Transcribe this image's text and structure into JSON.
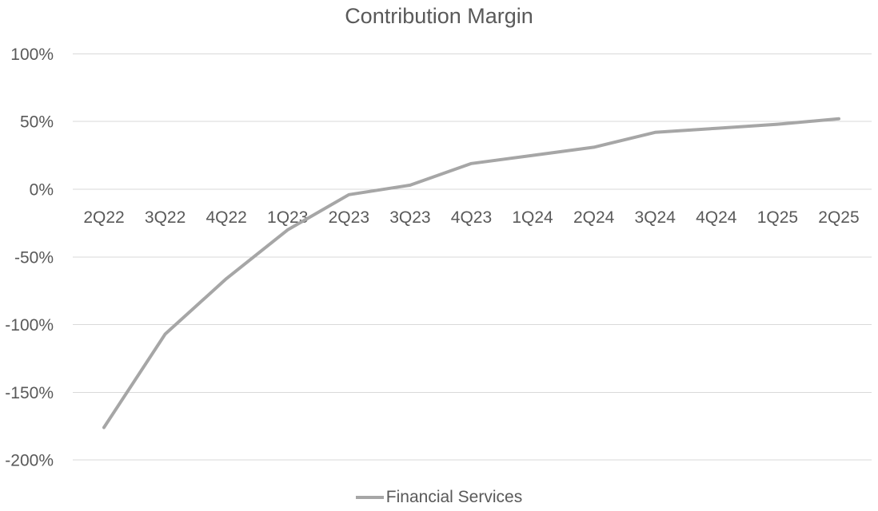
{
  "chart_data": {
    "type": "line",
    "title": "Contribution Margin",
    "categories": [
      "2Q22",
      "3Q22",
      "4Q22",
      "1Q23",
      "2Q23",
      "3Q23",
      "4Q23",
      "1Q24",
      "2Q24",
      "3Q24",
      "4Q24",
      "1Q25",
      "2Q25"
    ],
    "series": [
      {
        "name": "Financial Services",
        "values": [
          -176,
          -107,
          -66,
          -30,
          -4,
          3,
          19,
          25,
          31,
          42,
          45,
          48,
          52
        ],
        "color": "#a6a6a6"
      }
    ],
    "xlabel": "",
    "ylabel": "",
    "y_axis": {
      "tick_labels": [
        "100%",
        "50%",
        "0%",
        "-50%",
        "-100%",
        "-150%",
        "-200%"
      ],
      "tick_values": [
        100,
        50,
        0,
        -50,
        -100,
        -150,
        -200
      ],
      "ylim": [
        -200,
        100
      ],
      "unit": "percent"
    },
    "grid": true,
    "legend_position": "bottom",
    "colors": {
      "series_line": "#a6a6a6",
      "axis_text": "#595959",
      "title_text": "#595959",
      "gridline": "#d9d9d9",
      "background": "#ffffff"
    }
  }
}
